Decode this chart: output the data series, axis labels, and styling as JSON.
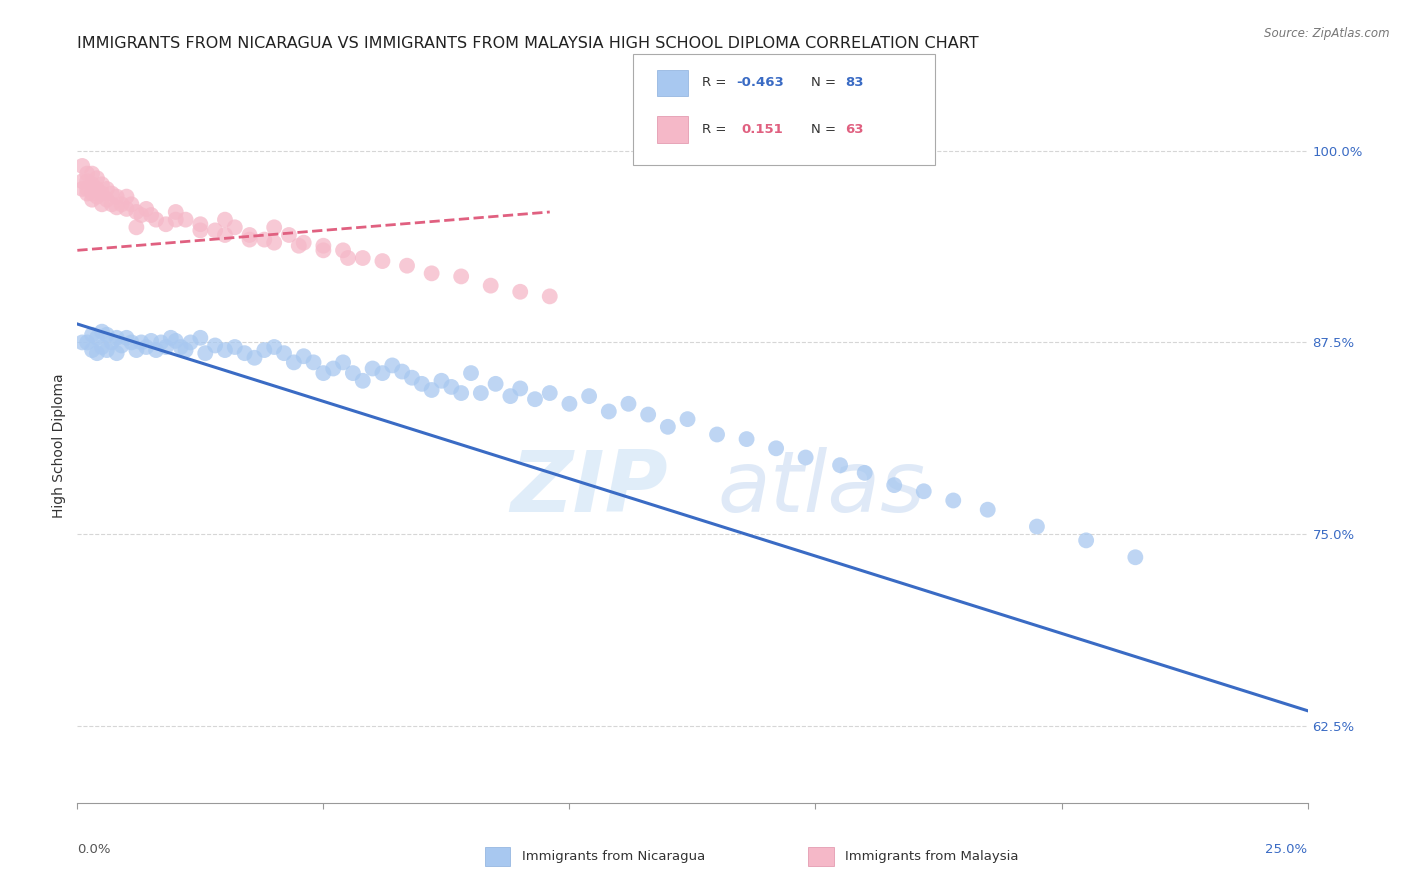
{
  "title": "IMMIGRANTS FROM NICARAGUA VS IMMIGRANTS FROM MALAYSIA HIGH SCHOOL DIPLOMA CORRELATION CHART",
  "source": "Source: ZipAtlas.com",
  "ylabel": "High School Diploma",
  "y_ticks": [
    0.625,
    0.75,
    0.875,
    1.0
  ],
  "y_tick_labels": [
    "62.5%",
    "75.0%",
    "87.5%",
    "100.0%"
  ],
  "xlim": [
    0.0,
    0.25
  ],
  "ylim": [
    0.575,
    1.04
  ],
  "color_nicaragua": "#A8C8F0",
  "color_malaysia": "#F5B8C8",
  "line_color_nicaragua": "#3A6BC4",
  "line_color_malaysia": "#E06080",
  "watermark_zip": "ZIP",
  "watermark_atlas": "atlas",
  "background_color": "#FFFFFF",
  "grid_color": "#CCCCCC",
  "title_fontsize": 11.5,
  "axis_label_fontsize": 10,
  "tick_fontsize": 9.5,
  "nicaragua_x": [
    0.001,
    0.002,
    0.003,
    0.003,
    0.004,
    0.004,
    0.005,
    0.005,
    0.006,
    0.006,
    0.007,
    0.008,
    0.008,
    0.009,
    0.01,
    0.011,
    0.012,
    0.013,
    0.014,
    0.015,
    0.016,
    0.017,
    0.018,
    0.019,
    0.02,
    0.021,
    0.022,
    0.023,
    0.025,
    0.026,
    0.028,
    0.03,
    0.032,
    0.034,
    0.036,
    0.038,
    0.04,
    0.042,
    0.044,
    0.046,
    0.048,
    0.05,
    0.052,
    0.054,
    0.056,
    0.058,
    0.06,
    0.062,
    0.064,
    0.066,
    0.068,
    0.07,
    0.072,
    0.074,
    0.076,
    0.078,
    0.08,
    0.082,
    0.085,
    0.088,
    0.09,
    0.093,
    0.096,
    0.1,
    0.104,
    0.108,
    0.112,
    0.116,
    0.12,
    0.124,
    0.13,
    0.136,
    0.142,
    0.148,
    0.155,
    0.16,
    0.166,
    0.172,
    0.178,
    0.185,
    0.195,
    0.205,
    0.215
  ],
  "nicaragua_y": [
    0.875,
    0.875,
    0.87,
    0.88,
    0.868,
    0.878,
    0.872,
    0.882,
    0.87,
    0.88,
    0.875,
    0.868,
    0.878,
    0.873,
    0.878,
    0.875,
    0.87,
    0.875,
    0.872,
    0.876,
    0.87,
    0.875,
    0.872,
    0.878,
    0.876,
    0.872,
    0.87,
    0.875,
    0.878,
    0.868,
    0.873,
    0.87,
    0.872,
    0.868,
    0.865,
    0.87,
    0.872,
    0.868,
    0.862,
    0.866,
    0.862,
    0.855,
    0.858,
    0.862,
    0.855,
    0.85,
    0.858,
    0.855,
    0.86,
    0.856,
    0.852,
    0.848,
    0.844,
    0.85,
    0.846,
    0.842,
    0.855,
    0.842,
    0.848,
    0.84,
    0.845,
    0.838,
    0.842,
    0.835,
    0.84,
    0.83,
    0.835,
    0.828,
    0.82,
    0.825,
    0.815,
    0.812,
    0.806,
    0.8,
    0.795,
    0.79,
    0.782,
    0.778,
    0.772,
    0.766,
    0.755,
    0.746,
    0.735
  ],
  "malaysia_x": [
    0.001,
    0.001,
    0.001,
    0.002,
    0.002,
    0.002,
    0.002,
    0.003,
    0.003,
    0.003,
    0.003,
    0.004,
    0.004,
    0.004,
    0.005,
    0.005,
    0.005,
    0.006,
    0.006,
    0.007,
    0.007,
    0.008,
    0.008,
    0.009,
    0.01,
    0.01,
    0.011,
    0.012,
    0.013,
    0.014,
    0.015,
    0.016,
    0.018,
    0.02,
    0.022,
    0.025,
    0.028,
    0.03,
    0.032,
    0.035,
    0.038,
    0.04,
    0.043,
    0.046,
    0.05,
    0.054,
    0.058,
    0.062,
    0.067,
    0.072,
    0.078,
    0.084,
    0.09,
    0.096,
    0.012,
    0.02,
    0.025,
    0.03,
    0.035,
    0.04,
    0.045,
    0.05,
    0.055
  ],
  "malaysia_y": [
    0.98,
    0.975,
    0.99,
    0.985,
    0.98,
    0.975,
    0.972,
    0.985,
    0.978,
    0.972,
    0.968,
    0.982,
    0.975,
    0.97,
    0.978,
    0.972,
    0.965,
    0.975,
    0.968,
    0.972,
    0.965,
    0.97,
    0.963,
    0.965,
    0.97,
    0.962,
    0.965,
    0.96,
    0.958,
    0.962,
    0.958,
    0.955,
    0.952,
    0.96,
    0.955,
    0.952,
    0.948,
    0.955,
    0.95,
    0.945,
    0.942,
    0.95,
    0.945,
    0.94,
    0.938,
    0.935,
    0.93,
    0.928,
    0.925,
    0.92,
    0.918,
    0.912,
    0.908,
    0.905,
    0.95,
    0.955,
    0.948,
    0.945,
    0.942,
    0.94,
    0.938,
    0.935,
    0.93
  ]
}
